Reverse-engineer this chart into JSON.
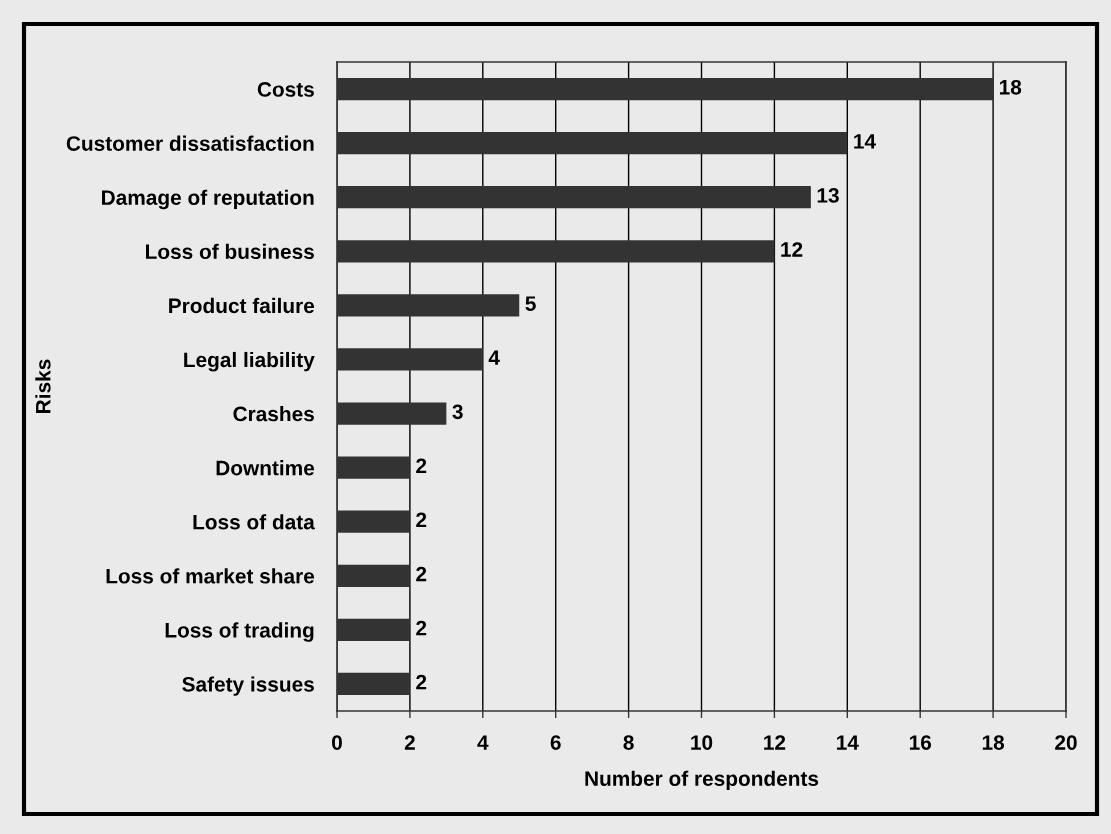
{
  "chart_data": {
    "type": "bar",
    "orientation": "horizontal",
    "xlabel": "Number of respondents",
    "ylabel": "Risks",
    "categories": [
      "Costs",
      "Customer dissatisfaction",
      "Damage of reputation",
      "Loss of business",
      "Product failure",
      "Legal liability",
      "Crashes",
      "Downtime",
      "Loss of data",
      "Loss of market share",
      "Loss of trading",
      "Safety issues"
    ],
    "values": [
      18,
      14,
      13,
      12,
      5,
      4,
      3,
      2,
      2,
      2,
      2,
      2
    ],
    "color": "#333333",
    "xlim": [
      0,
      20
    ],
    "xticks": [
      0,
      2,
      4,
      6,
      8,
      10,
      12,
      14,
      16,
      18,
      20
    ],
    "grid": "x",
    "data_labels": true
  }
}
